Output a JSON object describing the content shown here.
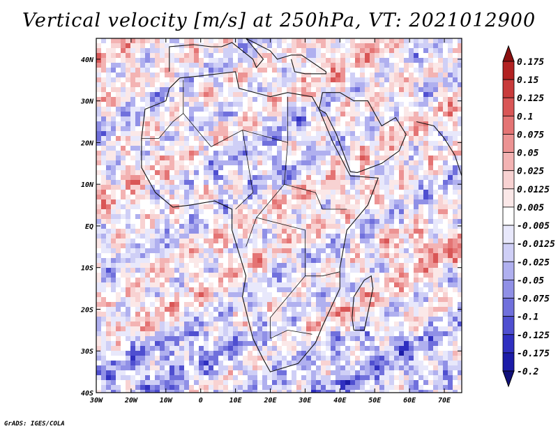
{
  "title": "Vertical velocity [m/s] at 250hPa, VT: 2021012900",
  "footer": "GrADS: IGES/COLA",
  "map": {
    "lat_ticks": [
      "40N",
      "30N",
      "20N",
      "10N",
      "EQ",
      "10S",
      "20S",
      "30S",
      "40S"
    ],
    "lon_ticks": [
      "30W",
      "20W",
      "10W",
      "0",
      "10E",
      "20E",
      "30E",
      "40E",
      "50E",
      "60E",
      "70E"
    ],
    "lat_range": [
      -40,
      45
    ],
    "lon_range": [
      -30,
      75
    ]
  },
  "colorbar": {
    "levels": [
      "0.175",
      "0.15",
      "0.125",
      "0.1",
      "0.075",
      "0.05",
      "0.025",
      "0.0125",
      "0.005",
      "-0.005",
      "-0.0125",
      "-0.025",
      "-0.05",
      "-0.075",
      "-0.1",
      "-0.125",
      "-0.175",
      "-0.2"
    ],
    "colors": [
      "#8b1010",
      "#b22222",
      "#c83b3b",
      "#d95656",
      "#e47474",
      "#ec9393",
      "#f3b3b3",
      "#f8d2d2",
      "#fbe8e8",
      "#ffffff",
      "#e8e8fb",
      "#cfcff6",
      "#b0b0ef",
      "#9090e6",
      "#7070dc",
      "#4f4fd0",
      "#2f2fc0",
      "#1c1ca8",
      "#10107a"
    ]
  }
}
